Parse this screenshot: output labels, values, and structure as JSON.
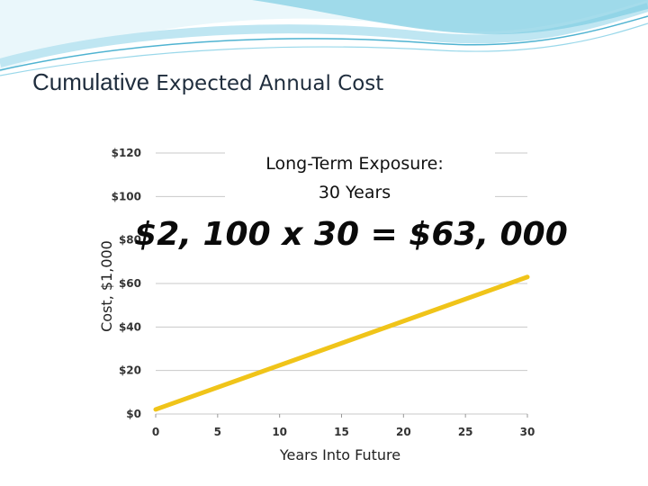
{
  "slide": {
    "title_part1": "Cumulative",
    "title_part2": "Expected Annual Cost"
  },
  "colors": {
    "series_line": "#f0c419",
    "grid": "#c8c8c8",
    "wave_light": "#bfe6f2",
    "wave_mid": "#7fcde3",
    "wave_dark": "#4fb3d1"
  },
  "chart_data": {
    "type": "line",
    "title_lines": [
      "Long-Term Exposure:",
      "30 Years"
    ],
    "annotation": "$2, 100 x 30 = $63, 000",
    "xlabel": "Years Into Future",
    "ylabel": "Cost, $1,000",
    "x_ticks": [
      0,
      5,
      10,
      15,
      20,
      25,
      30
    ],
    "y_ticks": [
      0,
      20,
      40,
      60,
      80,
      100,
      120
    ],
    "y_tick_labels": [
      "$0",
      "$20",
      "$40",
      "$60",
      "$80",
      "$100",
      "$120"
    ],
    "xlim": [
      0,
      30
    ],
    "ylim": [
      0,
      120
    ],
    "grid": true,
    "series": [
      {
        "x": [
          0,
          30
        ],
        "values": [
          2.1,
          63
        ]
      }
    ]
  }
}
